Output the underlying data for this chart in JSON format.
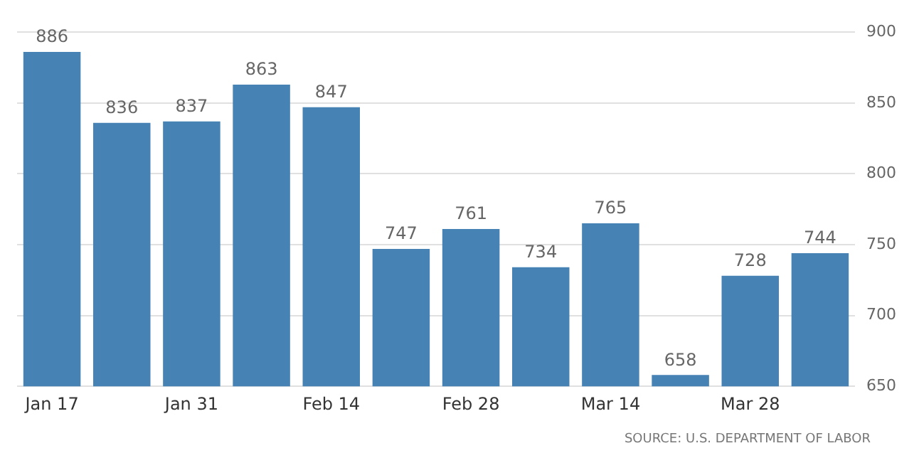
{
  "chart_data": {
    "type": "bar",
    "categories": [
      "Jan 17",
      null,
      "Jan 31",
      null,
      "Feb 14",
      null,
      "Feb 28",
      null,
      "Mar 14",
      null,
      "Mar 28",
      null
    ],
    "values": [
      886,
      836,
      837,
      863,
      847,
      747,
      761,
      734,
      765,
      658,
      728,
      744
    ],
    "color": "#4682b4",
    "ylim": [
      650,
      900
    ],
    "yticks": [
      650,
      700,
      750,
      800,
      850,
      900
    ],
    "grid": "y",
    "data_labels": true,
    "annotations": [
      "SOURCE: U.S. DEPARTMENT OF LABOR"
    ]
  }
}
